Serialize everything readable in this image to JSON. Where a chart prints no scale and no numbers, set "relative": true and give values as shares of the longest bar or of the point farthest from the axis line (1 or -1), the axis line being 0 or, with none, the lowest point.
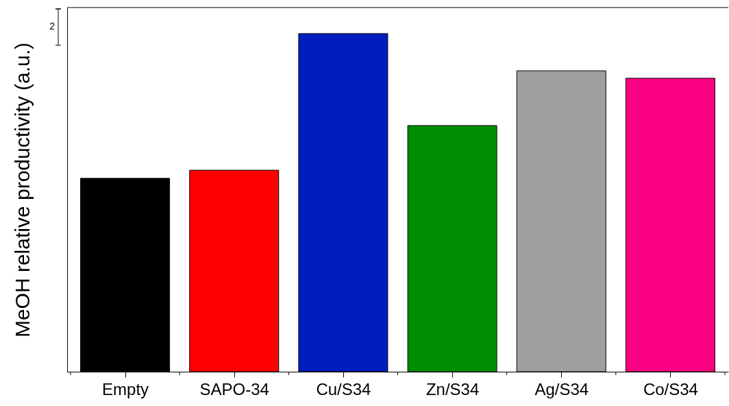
{
  "chart_data": {
    "type": "bar",
    "ylabel": "MeOH relative productivity (a.u.)",
    "relative": true,
    "categories": [
      "Empty",
      "SAPO-34",
      "Cu/S34",
      "Zn/S34",
      "Ag/S34",
      "Co/S34"
    ],
    "values": [
      0.572,
      0.596,
      1,
      0.728,
      0.89,
      0.868
    ],
    "colors": [
      "#000000",
      "#ff0000",
      "#001ebe",
      "#008c00",
      "#9f9f9f",
      "#fa0082"
    ],
    "annotations": [
      "2"
    ],
    "grid": false
  }
}
